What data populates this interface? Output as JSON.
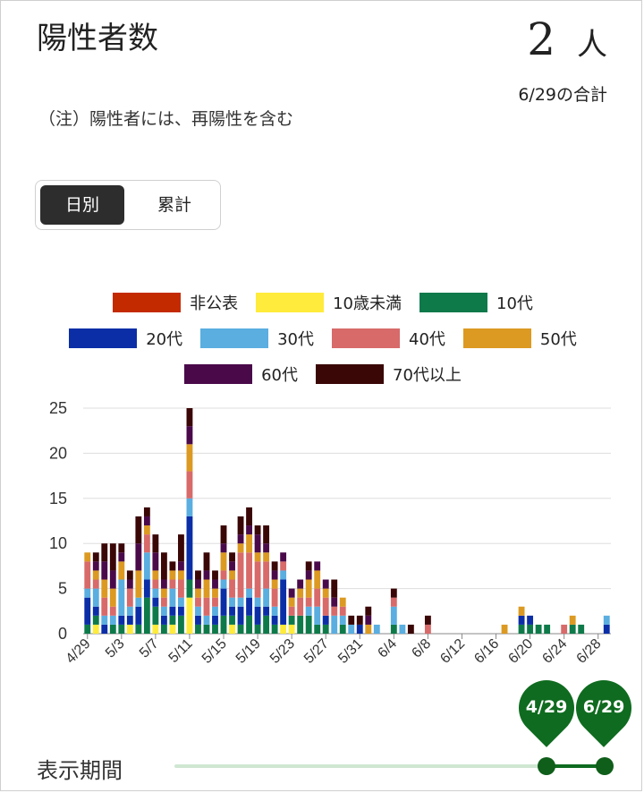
{
  "header": {
    "title": "陽性者数",
    "total_value": "2",
    "total_unit": "人",
    "total_date": "6/29の合計",
    "note": "（注）陽性者には、再陽性を含む"
  },
  "toggle": {
    "daily_label": "日別",
    "cumulative_label": "累計"
  },
  "legend": [
    {
      "name": "非公表",
      "color": "#c42a00"
    },
    {
      "name": "10歳未満",
      "color": "#ffeb3b"
    },
    {
      "name": "10代",
      "color": "#0e7a4a"
    },
    {
      "name": "20代",
      "color": "#0b2ea7"
    },
    {
      "name": "30代",
      "color": "#5aaee0"
    },
    {
      "name": "40代",
      "color": "#d86a6a"
    },
    {
      "name": "50代",
      "color": "#dc9a22"
    },
    {
      "name": "60代",
      "color": "#4a0a4a"
    },
    {
      "name": "70代以上",
      "color": "#3a0606"
    }
  ],
  "chart_data": {
    "type": "bar",
    "stacked": true,
    "ylim": [
      0,
      25
    ],
    "yticks": [
      0,
      5,
      10,
      15,
      20,
      25
    ],
    "grid": true,
    "legend_position": "top",
    "xtick_labels": [
      "4/29",
      "5/3",
      "5/7",
      "5/11",
      "5/15",
      "5/19",
      "5/23",
      "5/27",
      "5/31",
      "6/4",
      "6/8",
      "6/12",
      "6/16",
      "6/20",
      "6/24",
      "6/28"
    ],
    "categories": [
      "4/29",
      "4/30",
      "5/1",
      "5/2",
      "5/3",
      "5/4",
      "5/5",
      "5/6",
      "5/7",
      "5/8",
      "5/9",
      "5/10",
      "5/11",
      "5/12",
      "5/13",
      "5/14",
      "5/15",
      "5/16",
      "5/17",
      "5/18",
      "5/19",
      "5/20",
      "5/21",
      "5/22",
      "5/23",
      "5/24",
      "5/25",
      "5/26",
      "5/27",
      "5/28",
      "5/29",
      "5/30",
      "5/31",
      "6/1",
      "6/2",
      "6/3",
      "6/4",
      "6/5",
      "6/6",
      "6/7",
      "6/8",
      "6/9",
      "6/10",
      "6/11",
      "6/12",
      "6/13",
      "6/14",
      "6/15",
      "6/16",
      "6/17",
      "6/18",
      "6/19",
      "6/20",
      "6/21",
      "6/22",
      "6/23",
      "6/24",
      "6/25",
      "6/26",
      "6/27",
      "6/28",
      "6/29"
    ],
    "series": [
      {
        "name": "非公表",
        "color": "#c42a00",
        "values": [
          0,
          0,
          0,
          0,
          0,
          0,
          0,
          0,
          0,
          0,
          0,
          0,
          0,
          0,
          0,
          0,
          0,
          0,
          0,
          0,
          0,
          0,
          0,
          0,
          0,
          0,
          0,
          0,
          0,
          0,
          0,
          0,
          0,
          0,
          0,
          0,
          0,
          0,
          0,
          0,
          0,
          0,
          0,
          0,
          0,
          0,
          0,
          0,
          0,
          0,
          0,
          0,
          0,
          0,
          0,
          0,
          0,
          0,
          0,
          0,
          0,
          0
        ]
      },
      {
        "name": "10歳未満",
        "color": "#ffeb3b",
        "values": [
          0,
          1,
          0,
          0,
          0,
          1,
          0,
          0,
          1,
          0,
          1,
          0,
          4,
          0,
          0,
          0,
          0,
          1,
          0,
          0,
          0,
          0,
          0,
          1,
          1,
          0,
          0,
          0,
          0,
          0,
          0,
          0,
          0,
          0,
          0,
          0,
          0,
          0,
          0,
          0,
          0,
          0,
          0,
          0,
          0,
          0,
          0,
          0,
          0,
          0,
          0,
          0,
          0,
          0,
          0,
          0,
          0,
          0,
          0,
          0,
          0,
          0
        ]
      },
      {
        "name": "10代",
        "color": "#0e7a4a",
        "values": [
          1,
          1,
          0,
          1,
          1,
          0,
          1,
          4,
          2,
          1,
          1,
          2,
          2,
          1,
          1,
          1,
          2,
          1,
          1,
          2,
          1,
          2,
          1,
          0,
          1,
          2,
          2,
          1,
          1,
          0,
          1,
          0,
          0,
          0,
          0,
          0,
          1,
          0,
          0,
          0,
          0,
          0,
          0,
          0,
          0,
          0,
          0,
          0,
          0,
          0,
          0,
          1,
          1,
          1,
          1,
          0,
          0,
          1,
          1,
          0,
          0,
          0
        ]
      },
      {
        "name": "20代",
        "color": "#0b2ea7",
        "values": [
          3,
          1,
          1,
          0,
          1,
          1,
          2,
          2,
          1,
          1,
          1,
          1,
          7,
          1,
          0,
          1,
          3,
          1,
          2,
          2,
          2,
          1,
          1,
          5,
          0,
          0,
          0,
          0,
          1,
          0,
          0,
          0,
          1,
          0,
          0,
          0,
          0,
          0,
          0,
          0,
          0,
          0,
          0,
          0,
          0,
          0,
          0,
          0,
          0,
          0,
          0,
          1,
          1,
          0,
          0,
          0,
          0,
          0,
          0,
          0,
          0,
          1
        ]
      },
      {
        "name": "30代",
        "color": "#5aaee0",
        "values": [
          1,
          2,
          1,
          1,
          4,
          1,
          1,
          3,
          1,
          1,
          2,
          1,
          2,
          1,
          1,
          1,
          1,
          1,
          1,
          1,
          1,
          2,
          1,
          1,
          0,
          0,
          1,
          2,
          0,
          2,
          1,
          1,
          0,
          0,
          1,
          0,
          2,
          1,
          0,
          0,
          0,
          0,
          0,
          0,
          0,
          0,
          0,
          0,
          0,
          0,
          0,
          0,
          0,
          0,
          0,
          0,
          0,
          0,
          0,
          0,
          0,
          1
        ]
      },
      {
        "name": "40代",
        "color": "#d86a6a",
        "values": [
          3,
          1,
          2,
          1,
          0,
          2,
          0,
          2,
          1,
          1,
          1,
          2,
          3,
          1,
          2,
          1,
          1,
          2,
          5,
          4,
          4,
          3,
          2,
          1,
          1,
          2,
          1,
          2,
          2,
          1,
          1,
          0,
          0,
          0,
          0,
          0,
          1,
          0,
          0,
          0,
          1,
          0,
          0,
          0,
          0,
          0,
          0,
          0,
          0,
          0,
          0,
          0,
          0,
          0,
          0,
          0,
          1,
          0,
          0,
          0,
          0,
          0
        ]
      },
      {
        "name": "50代",
        "color": "#dc9a22",
        "values": [
          1,
          1,
          2,
          2,
          2,
          0,
          3,
          1,
          1,
          1,
          1,
          1,
          3,
          1,
          2,
          1,
          2,
          1,
          1,
          2,
          1,
          1,
          1,
          0,
          1,
          1,
          2,
          2,
          1,
          0,
          1,
          0,
          0,
          1,
          0,
          0,
          0,
          0,
          0,
          0,
          0,
          0,
          0,
          0,
          0,
          0,
          0,
          0,
          0,
          1,
          0,
          1,
          0,
          0,
          0,
          0,
          0,
          1,
          0,
          0,
          0,
          0
        ]
      },
      {
        "name": "60代",
        "color": "#4a0a4a",
        "values": [
          0,
          1,
          2,
          2,
          1,
          1,
          3,
          1,
          2,
          1,
          0,
          1,
          2,
          1,
          1,
          1,
          1,
          1,
          1,
          1,
          2,
          1,
          1,
          1,
          1,
          1,
          1,
          1,
          1,
          1,
          0,
          0,
          0,
          1,
          0,
          0,
          0,
          0,
          0,
          0,
          0,
          0,
          0,
          0,
          0,
          0,
          0,
          0,
          0,
          0,
          0,
          0,
          0,
          0,
          0,
          0,
          0,
          0,
          0,
          0,
          0,
          0
        ]
      },
      {
        "name": "70代以上",
        "color": "#3a0606",
        "values": [
          0,
          1,
          2,
          3,
          1,
          1,
          3,
          1,
          2,
          3,
          1,
          3,
          2,
          1,
          2,
          1,
          2,
          1,
          2,
          2,
          1,
          2,
          1,
          0,
          0,
          0,
          1,
          0,
          0,
          2,
          0,
          1,
          1,
          1,
          0,
          0,
          1,
          0,
          1,
          0,
          1,
          0,
          0,
          0,
          0,
          0,
          0,
          0,
          0,
          0,
          0,
          0,
          0,
          0,
          0,
          0,
          0,
          0,
          0,
          0,
          0,
          0
        ]
      }
    ]
  },
  "period": {
    "label": "表示期間",
    "start_label": "4/29",
    "end_label": "6/29"
  }
}
